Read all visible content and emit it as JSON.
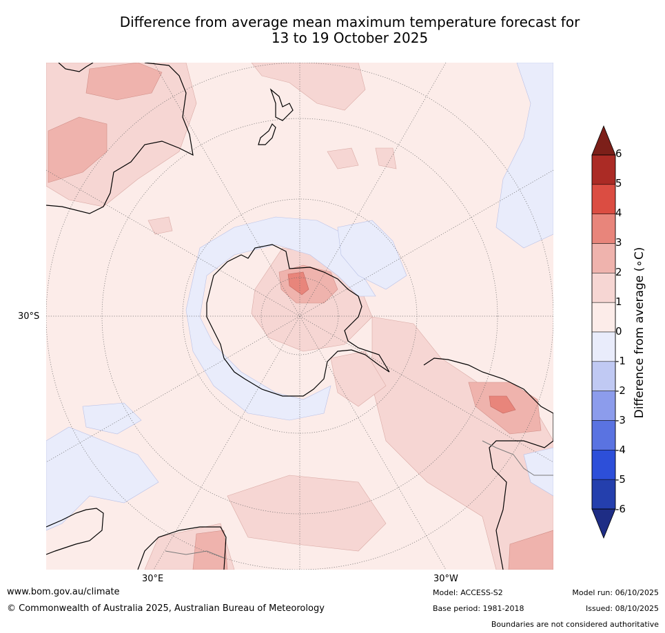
{
  "title": {
    "line1": "Difference from average mean maximum temperature forecast for",
    "line2": "13 to 19 October 2025"
  },
  "map": {
    "projection": "south-polar-stereographic",
    "lat_label": "30°S",
    "lon_labels": [
      "30°E",
      "30°W"
    ],
    "ocean_color": "#fcece9"
  },
  "colorbar": {
    "title": "Difference from average (∘C)",
    "ticks": [
      "6",
      "5",
      "4",
      "3",
      "2",
      "1",
      "0",
      "-1",
      "-2",
      "-3",
      "-4",
      "-5",
      "-6"
    ],
    "bins": [
      {
        "range": [
          5,
          6
        ],
        "color": "#ab2b25"
      },
      {
        "range": [
          4,
          5
        ],
        "color": "#db4d42"
      },
      {
        "range": [
          3,
          4
        ],
        "color": "#e8857b"
      },
      {
        "range": [
          2,
          3
        ],
        "color": "#efb3ad"
      },
      {
        "range": [
          1,
          2
        ],
        "color": "#f6d6d3"
      },
      {
        "range": [
          0,
          1
        ],
        "color": "#fcece9"
      },
      {
        "range": [
          -1,
          0
        ],
        "color": "#e9ecfb"
      },
      {
        "range": [
          -2,
          -1
        ],
        "color": "#c0c9f3"
      },
      {
        "range": [
          -3,
          -2
        ],
        "color": "#8c9cec"
      },
      {
        "range": [
          -4,
          -3
        ],
        "color": "#5a73e1"
      },
      {
        "range": [
          -5,
          -4
        ],
        "color": "#2d4fd9"
      },
      {
        "range": [
          -6,
          -5
        ],
        "color": "#243fad"
      }
    ],
    "over_color": "#7c1f19",
    "under_color": "#1e2d85"
  },
  "footer": {
    "url": "www.bom.gov.au/climate",
    "copyright": "© Commonwealth of Australia 2025, Australian Bureau of Meteorology",
    "model": "Model: ACCESS-S2",
    "base_period": "Base period: 1981-2018",
    "model_run": "Model run: 06/10/2025",
    "issued": "Issued: 08/10/2025",
    "disclaimer": "Boundaries are not considered authoritative"
  }
}
